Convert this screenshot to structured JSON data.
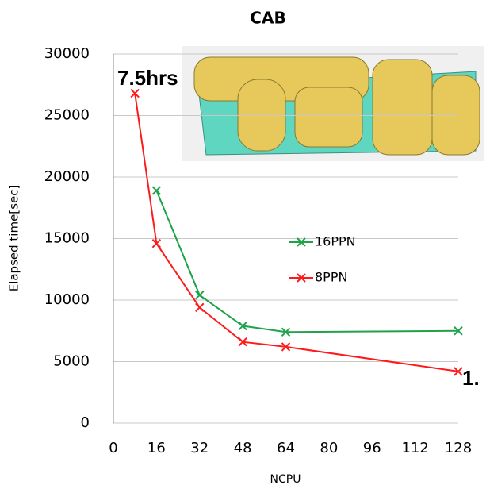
{
  "chart_data": {
    "type": "line",
    "title": "CAB",
    "x_label": "NCPU",
    "y_label": "Elapsed time[sec]",
    "annotations": [
      "7.5hrs",
      "1."
    ],
    "series": [
      {
        "name": "16PPN",
        "color": "#1fa34a",
        "x": [
          16,
          32,
          48,
          64,
          128
        ],
        "values": [
          18900,
          10400,
          7900,
          7400,
          7500
        ]
      },
      {
        "name": "8PPN",
        "color": "#ff1a1a",
        "x": [
          8,
          16,
          32,
          48,
          64,
          128
        ],
        "values": [
          26800,
          14600,
          9400,
          6600,
          6200,
          4200
        ]
      }
    ],
    "xlim": [
      0,
      128
    ],
    "xticks": [
      0,
      16,
      32,
      48,
      64,
      80,
      96,
      112,
      128
    ],
    "ylim": [
      0,
      30000
    ],
    "yticks": [
      0,
      5000,
      10000,
      15000,
      20000,
      25000,
      30000
    ],
    "grid": true
  }
}
